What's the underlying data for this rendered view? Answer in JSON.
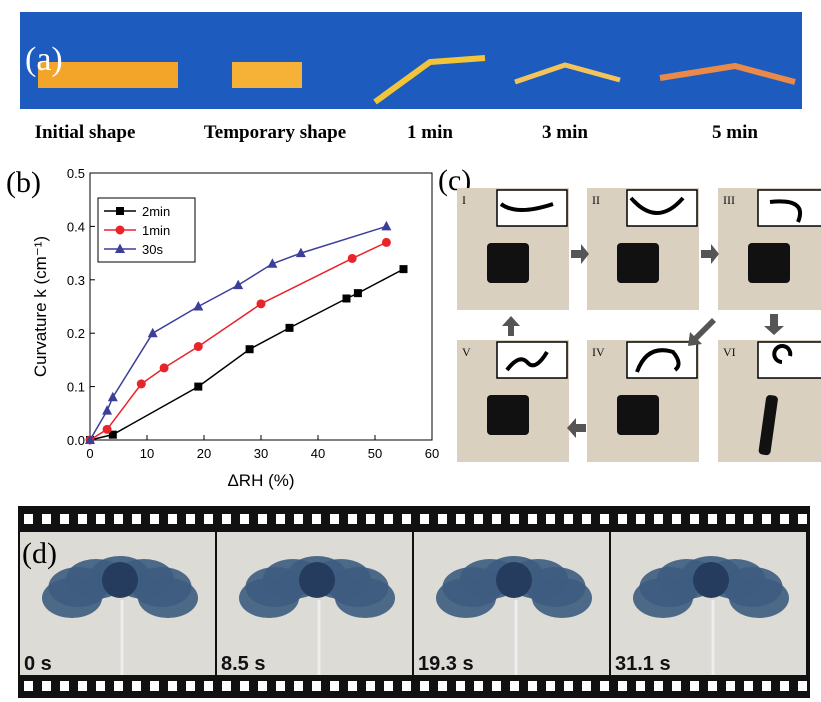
{
  "panel_a": {
    "label": "(a)",
    "captions": [
      "Initial shape",
      "Temporary shape",
      "1 min",
      "3 min",
      "5 min"
    ]
  },
  "panel_c": {
    "label": "(c)",
    "steps": [
      "I",
      "II",
      "III",
      "IV",
      "V",
      "VI"
    ]
  },
  "panel_d": {
    "label": "(d)",
    "times": [
      "0 s",
      "8.5 s",
      "19.3 s",
      "31.1 s"
    ]
  },
  "chart_data": {
    "type": "line",
    "panel_label": "(b)",
    "x_label": "ΔRH (%)",
    "y_label": "Curvature k (cm⁻¹)",
    "xlim": [
      0,
      60
    ],
    "xticks": [
      0,
      10,
      20,
      30,
      40,
      50,
      60
    ],
    "ylim": [
      0,
      0.5
    ],
    "yticks": [
      {
        "value": 0,
        "label": "0.0"
      },
      0.1,
      0.2,
      0.3,
      0.4,
      0.5
    ],
    "legend": "upper left",
    "series": [
      {
        "name": "2min",
        "color": "#000000",
        "marker": "square",
        "x": [
          0,
          4,
          19,
          28,
          35,
          45,
          47,
          55
        ],
        "values": [
          0,
          0.01,
          0.1,
          0.17,
          0.21,
          0.265,
          0.275,
          0.32
        ]
      },
      {
        "name": "1min",
        "color": "#e8242b",
        "marker": "circle",
        "x": [
          0,
          3,
          9,
          13,
          19,
          30,
          46,
          52
        ],
        "values": [
          0,
          0.02,
          0.105,
          0.135,
          0.175,
          0.255,
          0.34,
          0.37
        ]
      },
      {
        "name": "30s",
        "color": "#3c3f9a",
        "marker": "triangle",
        "x": [
          0,
          3,
          4,
          11,
          19,
          26,
          32,
          37,
          52
        ],
        "values": [
          0,
          0.055,
          0.08,
          0.2,
          0.25,
          0.29,
          0.33,
          0.35,
          0.4
        ]
      }
    ]
  }
}
